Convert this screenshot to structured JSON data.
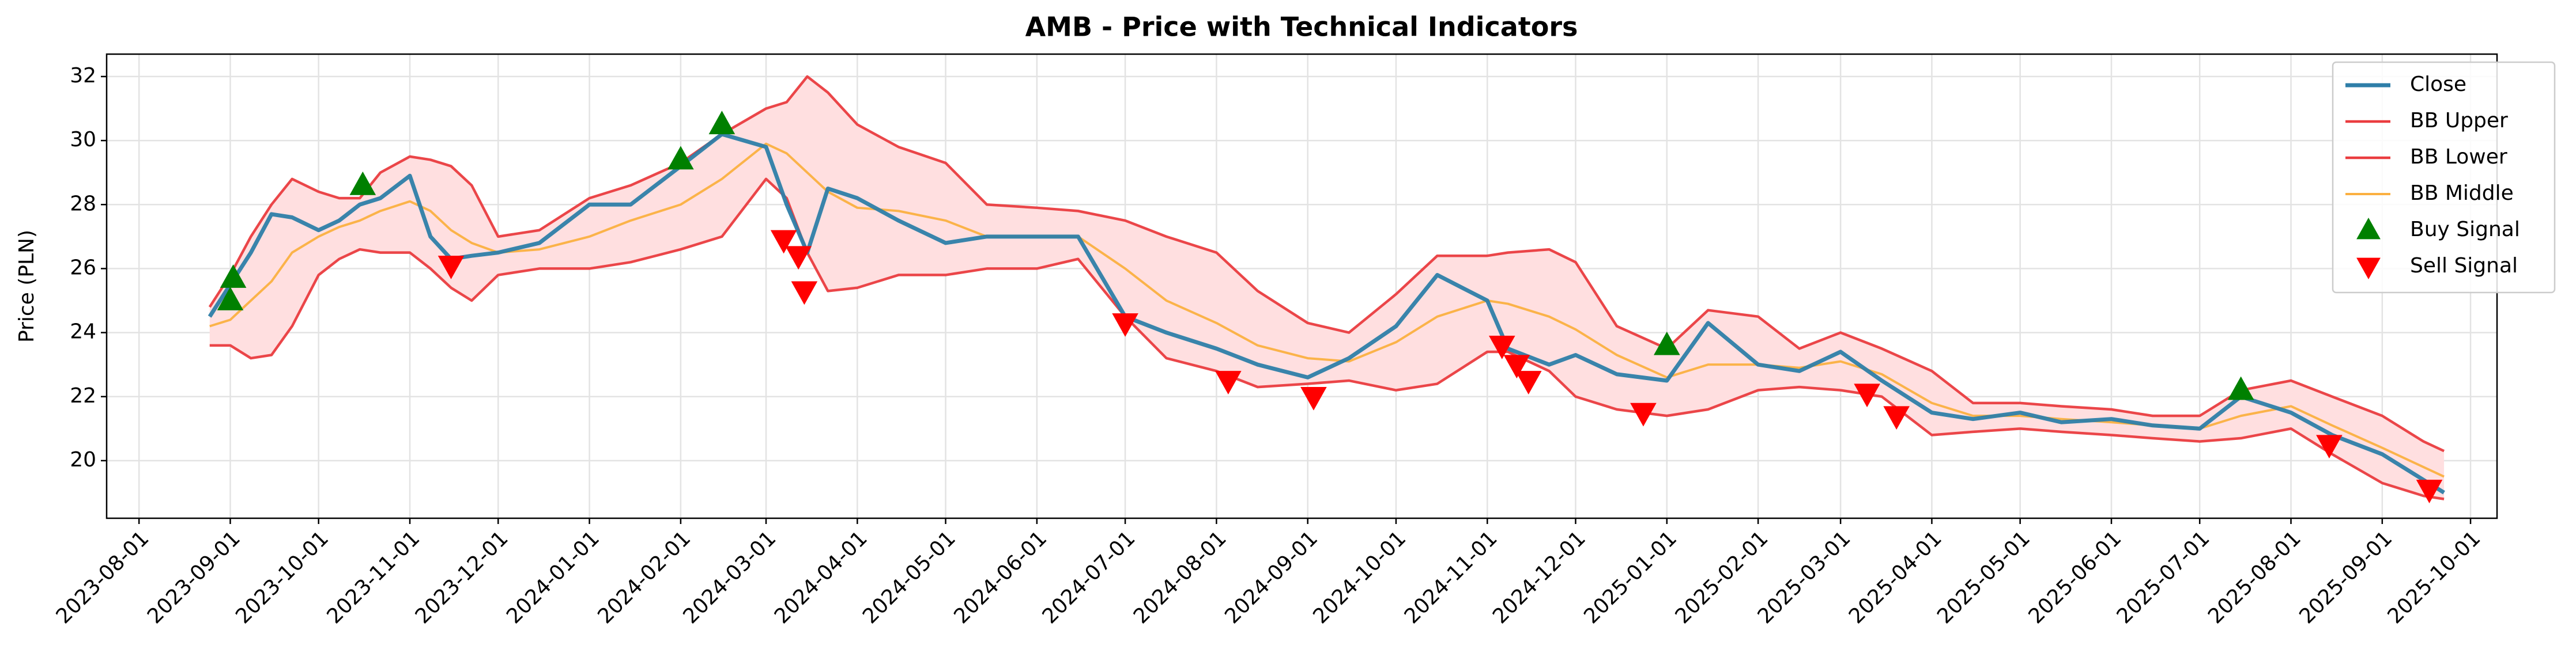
{
  "chart_data": {
    "type": "line",
    "title": "AMB - Price with Technical Indicators",
    "y_label": "Price (PLN)",
    "grid": true,
    "legend": "upper right",
    "band_fill": "#ffdfe0",
    "xlim": [
      "2023-07-21",
      "2025-10-10"
    ],
    "xticks": [
      "2023-08-01",
      "2023-09-01",
      "2023-10-01",
      "2023-11-01",
      "2023-12-01",
      "2024-01-01",
      "2024-02-01",
      "2024-03-01",
      "2024-04-01",
      "2024-05-01",
      "2024-06-01",
      "2024-07-01",
      "2024-08-01",
      "2024-09-01",
      "2024-10-01",
      "2024-11-01",
      "2024-12-01",
      "2025-01-01",
      "2025-02-01",
      "2025-03-01",
      "2025-04-01",
      "2025-05-01",
      "2025-06-01",
      "2025-07-01",
      "2025-08-01",
      "2025-09-01",
      "2025-10-01"
    ],
    "ylim": [
      18.2,
      32.7
    ],
    "yticks": [
      20,
      22,
      24,
      26,
      28,
      30,
      32
    ],
    "x": [
      "2023-08-25",
      "2023-09-01",
      "2023-09-08",
      "2023-09-15",
      "2023-09-22",
      "2023-10-01",
      "2023-10-08",
      "2023-10-15",
      "2023-10-22",
      "2023-11-01",
      "2023-11-08",
      "2023-11-15",
      "2023-11-22",
      "2023-12-01",
      "2023-12-15",
      "2024-01-01",
      "2024-01-15",
      "2024-02-01",
      "2024-02-15",
      "2024-03-01",
      "2024-03-08",
      "2024-03-15",
      "2024-03-22",
      "2024-04-01",
      "2024-04-15",
      "2024-05-01",
      "2024-05-15",
      "2024-06-01",
      "2024-06-15",
      "2024-07-01",
      "2024-07-15",
      "2024-08-01",
      "2024-08-15",
      "2024-09-01",
      "2024-09-15",
      "2024-10-01",
      "2024-10-15",
      "2024-11-01",
      "2024-11-08",
      "2024-11-22",
      "2024-12-01",
      "2024-12-15",
      "2025-01-01",
      "2025-01-15",
      "2025-02-01",
      "2025-02-15",
      "2025-03-01",
      "2025-03-15",
      "2025-04-01",
      "2025-04-15",
      "2025-05-01",
      "2025-05-15",
      "2025-06-01",
      "2025-06-15",
      "2025-07-01",
      "2025-07-15",
      "2025-08-01",
      "2025-08-15",
      "2025-09-01",
      "2025-09-15",
      "2025-09-22"
    ],
    "series": [
      {
        "name": "Close",
        "color": "#2e7ea8",
        "width": 7,
        "values": [
          24.5,
          25.5,
          26.5,
          27.7,
          27.6,
          27.2,
          27.5,
          28.0,
          28.2,
          28.9,
          27.0,
          26.3,
          26.4,
          26.5,
          26.8,
          28.0,
          28.0,
          29.2,
          30.2,
          29.8,
          28.0,
          26.5,
          28.5,
          28.2,
          27.5,
          26.8,
          27.0,
          27.0,
          27.0,
          24.5,
          24.0,
          23.5,
          23.0,
          22.6,
          23.2,
          24.2,
          25.8,
          25.0,
          23.5,
          23.0,
          23.3,
          22.7,
          22.5,
          24.3,
          23.0,
          22.8,
          23.4,
          22.5,
          21.5,
          21.3,
          21.5,
          21.2,
          21.3,
          21.1,
          21.0,
          22.0,
          21.5,
          20.8,
          20.2,
          19.4,
          19.0
        ]
      },
      {
        "name": "BB Upper",
        "color": "#ea3c3f",
        "width": 4.5,
        "values": [
          24.8,
          25.8,
          27.0,
          28.0,
          28.8,
          28.4,
          28.2,
          28.2,
          29.0,
          29.5,
          29.4,
          29.2,
          28.6,
          27.0,
          27.2,
          28.2,
          28.6,
          29.3,
          30.2,
          31.0,
          31.2,
          32.0,
          31.5,
          30.5,
          29.8,
          29.3,
          28.0,
          27.9,
          27.8,
          27.5,
          27.0,
          26.5,
          25.3,
          24.3,
          24.0,
          25.2,
          26.4,
          26.4,
          26.5,
          26.6,
          26.2,
          24.2,
          23.5,
          24.7,
          24.5,
          23.5,
          24.0,
          23.5,
          22.8,
          21.8,
          21.8,
          21.7,
          21.6,
          21.4,
          21.4,
          22.2,
          22.5,
          22.0,
          21.4,
          20.6,
          20.3
        ]
      },
      {
        "name": "BB Lower",
        "color": "#ea3c3f",
        "width": 4.5,
        "values": [
          23.6,
          23.6,
          23.2,
          23.3,
          24.2,
          25.8,
          26.3,
          26.6,
          26.5,
          26.5,
          26.0,
          25.4,
          25.0,
          25.8,
          26.0,
          26.0,
          26.2,
          26.6,
          27.0,
          28.8,
          28.2,
          26.5,
          25.3,
          25.4,
          25.8,
          25.8,
          26.0,
          26.0,
          26.3,
          24.5,
          23.2,
          22.8,
          22.3,
          22.4,
          22.5,
          22.2,
          22.4,
          23.4,
          23.4,
          22.8,
          22.0,
          21.6,
          21.4,
          21.6,
          22.2,
          22.3,
          22.2,
          22.0,
          20.8,
          20.9,
          21.0,
          20.9,
          20.8,
          20.7,
          20.6,
          20.7,
          21.0,
          20.2,
          19.3,
          18.9,
          18.8
        ]
      },
      {
        "name": "BB Middle",
        "color": "#fbb040",
        "width": 4,
        "values": [
          24.2,
          24.4,
          25.0,
          25.6,
          26.5,
          27.0,
          27.3,
          27.5,
          27.8,
          28.1,
          27.8,
          27.2,
          26.8,
          26.5,
          26.6,
          27.0,
          27.5,
          28.0,
          28.8,
          29.9,
          29.6,
          29.0,
          28.4,
          27.9,
          27.8,
          27.5,
          27.0,
          27.0,
          27.0,
          26.0,
          25.0,
          24.3,
          23.6,
          23.2,
          23.1,
          23.7,
          24.5,
          25.0,
          24.9,
          24.5,
          24.1,
          23.3,
          22.6,
          23.0,
          23.0,
          22.9,
          23.1,
          22.7,
          21.8,
          21.4,
          21.4,
          21.3,
          21.2,
          21.1,
          21.0,
          21.4,
          21.7,
          21.1,
          20.4,
          19.8,
          19.5
        ]
      },
      {
        "name": "Buy Signal",
        "color": "#008000",
        "marker": "up",
        "x": [
          "2023-09-01",
          "2023-09-02",
          "2023-10-16",
          "2024-02-01",
          "2024-02-15",
          "2025-01-01",
          "2025-07-15"
        ],
        "values": [
          25.0,
          25.7,
          28.6,
          29.4,
          30.5,
          23.6,
          22.2
        ]
      },
      {
        "name": "Sell Signal",
        "color": "#ff0000",
        "marker": "down",
        "x": [
          "2023-11-15",
          "2024-03-07",
          "2024-03-12",
          "2024-03-14",
          "2024-07-01",
          "2024-08-05",
          "2024-09-03",
          "2024-11-06",
          "2024-11-11",
          "2024-11-15",
          "2024-12-24",
          "2025-03-10",
          "2025-03-20",
          "2025-08-14",
          "2025-09-17"
        ],
        "values": [
          26.1,
          26.9,
          26.4,
          25.3,
          24.3,
          22.5,
          22.0,
          23.6,
          23.0,
          22.5,
          21.5,
          22.1,
          21.4,
          20.5,
          19.1
        ]
      }
    ]
  }
}
